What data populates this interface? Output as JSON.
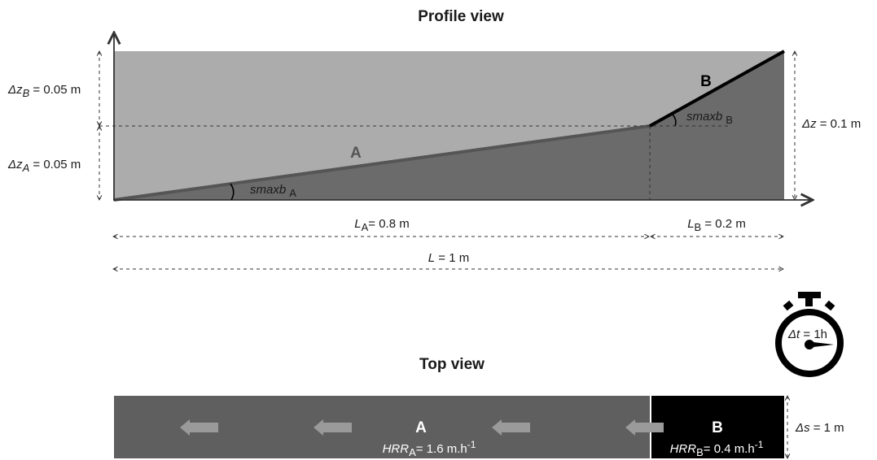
{
  "profile": {
    "title": "Profile view",
    "segment_a_label": "A",
    "segment_b_label": "B",
    "slope_a": {
      "main": "smaxb",
      "sub": "A"
    },
    "slope_b": {
      "main": "smaxb",
      "sub": "B"
    },
    "dz_b": {
      "symbol": "Δz",
      "sub": "B",
      "value": " = 0.05 m"
    },
    "dz_a": {
      "symbol": "Δz",
      "sub": "A",
      "value": " = 0.05 m"
    },
    "dz_total": {
      "symbol": "Δz",
      "value": " = 0.1 m"
    },
    "length_a": {
      "symbol": "L",
      "sub": "A",
      "value": "= 0.8 m"
    },
    "length_b": {
      "symbol": "L",
      "sub": "B",
      "value": " = 0.2 m"
    },
    "length_total": {
      "symbol": "L",
      "value": " = 1 m"
    }
  },
  "timer": {
    "symbol": "Δt",
    "value": " = 1h"
  },
  "top": {
    "title": "Top view",
    "segment_a_label": "A",
    "segment_b_label": "B",
    "hrr_a": {
      "symbol": "HRR",
      "sub": "A",
      "value": "= 1.6 m.h",
      "sup": "-1"
    },
    "hrr_b": {
      "symbol": "HRR",
      "sub": "B",
      "value": "= 0.4 m.h",
      "sup": "-1"
    },
    "width": {
      "symbol": "Δs",
      "value": " = 1 m"
    }
  },
  "colors": {
    "upper_fill": "#acacac",
    "lower_fill": "#6b6b6b",
    "segment_a_line": "#555555",
    "segment_b_line": "#000000",
    "top_a_fill": "#5f5f5f",
    "top_b_fill": "#000000",
    "arrow": "#9a9a9a"
  }
}
